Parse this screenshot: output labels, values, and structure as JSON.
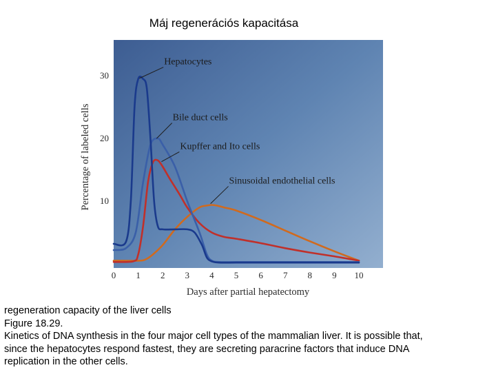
{
  "slide": {
    "title": "Máj regenerációs kapacitása"
  },
  "chart_data": {
    "type": "line",
    "xlabel": "Days after partial hepatectomy",
    "ylabel": "Percentage of labeled cells",
    "xlim": [
      0,
      10.5
    ],
    "ylim": [
      0,
      35
    ],
    "x_ticks": [
      "0",
      "1",
      "2",
      "3",
      "4",
      "5",
      "6",
      "7",
      "8",
      "9",
      "10"
    ],
    "y_ticks": [
      "10",
      "20",
      "30"
    ],
    "grid": false,
    "series": [
      {
        "name": "Hepatocytes",
        "color": "#1a3a8c",
        "x": [
          0,
          0.5,
          0.7,
          0.85,
          1.0,
          1.2,
          1.35,
          1.5,
          1.65,
          1.8,
          2.0,
          2.5,
          3.0,
          3.3,
          3.6,
          3.8,
          4.0,
          4.3,
          5,
          6,
          7,
          8,
          9,
          10
        ],
        "y": [
          3.2,
          3.5,
          10,
          25,
          29.5,
          29.5,
          28,
          20,
          10,
          6,
          5.5,
          5.5,
          5.5,
          5,
          3,
          1,
          0.4,
          0.2,
          0.2,
          0.2,
          0.2,
          0.2,
          0.2,
          0.2
        ]
      },
      {
        "name": "Bile duct cells",
        "color": "#3a5fa8",
        "x": [
          0,
          0.5,
          0.9,
          1.2,
          1.5,
          1.8,
          2.0,
          2.5,
          3.0,
          3.5,
          3.8,
          4.0,
          4.3,
          5,
          6,
          7,
          8,
          9,
          10
        ],
        "y": [
          2.2,
          2.5,
          5,
          13,
          19,
          20,
          19,
          15.5,
          10,
          5,
          1.5,
          0.5,
          0.3,
          0.3,
          0.3,
          0.3,
          0.3,
          0.3,
          0.3
        ]
      },
      {
        "name": "Kupffer and Ito cells",
        "color": "#c0302a",
        "x": [
          0,
          0.8,
          1.0,
          1.2,
          1.4,
          1.6,
          1.8,
          2.0,
          2.3,
          2.7,
          3.0,
          3.5,
          4.0,
          4.5,
          5,
          6,
          7,
          8,
          9,
          10
        ],
        "y": [
          0.3,
          0.4,
          1.5,
          6,
          13,
          16.2,
          16.5,
          15.5,
          13.5,
          11,
          9,
          6.5,
          5,
          4.3,
          4,
          3.3,
          2.5,
          1.8,
          1.2,
          0.5
        ]
      },
      {
        "name": "Sinusoidal endothelial cells",
        "color": "#d06a1e",
        "x": [
          0,
          1.0,
          1.3,
          1.6,
          2.0,
          2.5,
          3.0,
          3.5,
          3.8,
          4.0,
          4.2,
          4.5,
          5,
          6,
          7,
          8,
          9,
          10
        ],
        "y": [
          0.5,
          0.5,
          0.7,
          1.5,
          3,
          5.5,
          7.5,
          9,
          9.3,
          9.4,
          9.3,
          9,
          8.5,
          7,
          5.3,
          3.6,
          2,
          0.5
        ]
      }
    ]
  },
  "caption": {
    "lines": [
      "regeneration capacity of the liver cells",
      "Figure 18.29.",
      "Kinetics of DNA synthesis in the four major cell types of the mammalian liver. It is possible that,",
      "since the hepatocytes respond fastest, they are secreting paracrine factors that induce DNA",
      "replication in the other cells."
    ]
  }
}
